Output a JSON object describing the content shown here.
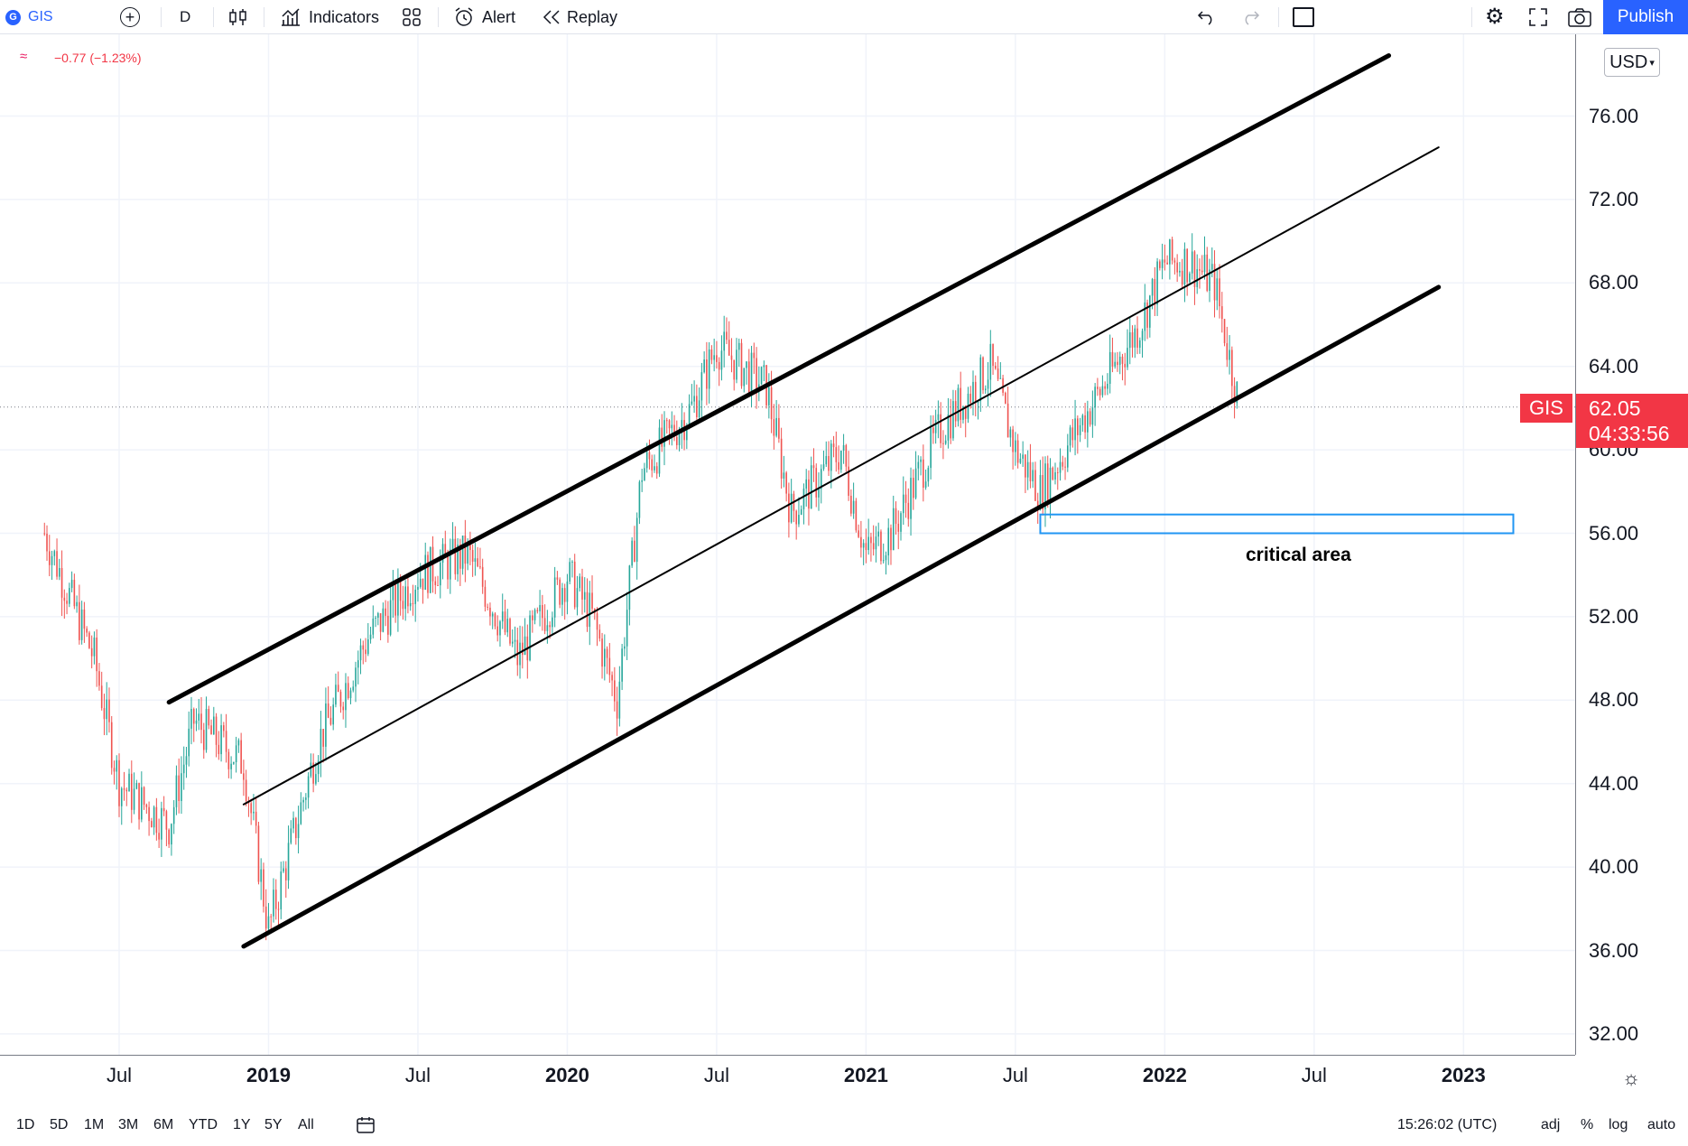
{
  "toolbar": {
    "symbol": "GIS",
    "interval": "D",
    "indicators_label": "Indicators",
    "alert_label": "Alert",
    "replay_label": "Replay",
    "publish_label": "Publish"
  },
  "legend": {
    "change": "−0.77 (−1.23%)"
  },
  "price_axis": {
    "currency": "USD",
    "labels": [
      "76.00",
      "72.00",
      "68.00",
      "64.00",
      "60.00",
      "56.00",
      "52.00",
      "48.00",
      "44.00",
      "40.00",
      "36.00",
      "32.00"
    ]
  },
  "time_axis": {
    "labels": [
      {
        "text": "Jul",
        "year": false
      },
      {
        "text": "2019",
        "year": true
      },
      {
        "text": "Jul",
        "year": false
      },
      {
        "text": "2020",
        "year": true
      },
      {
        "text": "Jul",
        "year": false
      },
      {
        "text": "2021",
        "year": true
      },
      {
        "text": "Jul",
        "year": false
      },
      {
        "text": "2022",
        "year": true
      },
      {
        "text": "Jul",
        "year": false
      },
      {
        "text": "2023",
        "year": true
      }
    ]
  },
  "last_price": {
    "symbol": "GIS",
    "price": "62.05",
    "countdown": "04:33:56"
  },
  "annotation": {
    "label": "critical area"
  },
  "bottom": {
    "ranges": [
      "1D",
      "5D",
      "1M",
      "3M",
      "6M",
      "YTD",
      "1Y",
      "5Y",
      "All"
    ],
    "clock": "15:26:02 (UTC)",
    "adj": "adj",
    "percent": "%",
    "log": "log",
    "auto": "auto"
  },
  "colors": {
    "up": "#26a69a",
    "down": "#ef5350",
    "accent": "#2962ff",
    "price_tag": "#f23645",
    "zone": "#2196f3"
  },
  "chart_data": {
    "type": "candlestick",
    "symbol": "GIS",
    "ylim": [
      31,
      79
    ],
    "x": [
      "2018-04",
      "2018-06",
      "2018-07",
      "2018-09",
      "2018-10",
      "2018-12",
      "2019-01",
      "2019-03",
      "2019-05",
      "2019-07",
      "2019-09",
      "2019-11",
      "2020-01",
      "2020-02",
      "2020-03",
      "2020-04",
      "2020-06",
      "2020-07",
      "2020-09",
      "2020-10",
      "2020-12",
      "2021-01",
      "2021-02",
      "2021-04",
      "2021-06",
      "2021-07",
      "2021-08",
      "2021-10",
      "2021-12",
      "2022-01",
      "2022-02",
      "2022-03",
      "2022-04"
    ],
    "close": [
      56,
      50,
      44,
      42,
      47,
      45,
      37,
      46,
      51,
      54,
      55,
      50,
      54,
      52,
      48,
      59,
      62,
      65,
      63,
      57,
      60,
      55,
      56,
      61,
      64,
      60,
      58,
      62,
      66,
      69,
      69,
      68,
      62.05
    ],
    "last": 62.05,
    "channel_lines": [
      {
        "name": "upper",
        "from": [
          "2018-09",
          47.9
        ],
        "to": [
          "2022-10",
          78.9
        ]
      },
      {
        "name": "middle",
        "from": [
          "2018-12",
          43
        ],
        "to": [
          "2022-12",
          74.5
        ]
      },
      {
        "name": "lower",
        "from": [
          "2018-12",
          36.2
        ],
        "to": [
          "2022-12",
          67.8
        ]
      }
    ],
    "zones": [
      {
        "label": "critical area",
        "from": "2021-08",
        "to": "2023-03",
        "ymin": 56,
        "ymax": 56.9
      }
    ]
  }
}
